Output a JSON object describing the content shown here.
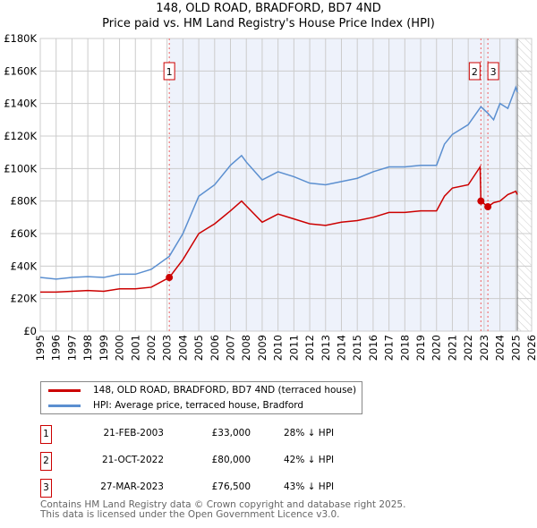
{
  "chart_data": {
    "type": "line",
    "title": "148, OLD ROAD, BRADFORD, BD7 4ND",
    "subtitle": "Price paid vs. HM Land Registry's House Price Index (HPI)",
    "xlim": [
      1995,
      2026
    ],
    "ylim": [
      0,
      180000
    ],
    "x_ticks": [
      "1995",
      "1996",
      "1997",
      "1998",
      "1999",
      "2000",
      "2001",
      "2002",
      "2003",
      "2004",
      "2005",
      "2006",
      "2007",
      "2008",
      "2009",
      "2010",
      "2011",
      "2012",
      "2013",
      "2014",
      "2015",
      "2016",
      "2017",
      "2018",
      "2019",
      "2020",
      "2021",
      "2022",
      "2023",
      "2024",
      "2025",
      "2026"
    ],
    "y_ticks": [
      {
        "v": 0,
        "l": "£0"
      },
      {
        "v": 20000,
        "l": "£20K"
      },
      {
        "v": 40000,
        "l": "£40K"
      },
      {
        "v": 60000,
        "l": "£60K"
      },
      {
        "v": 80000,
        "l": "£80K"
      },
      {
        "v": 100000,
        "l": "£100K"
      },
      {
        "v": 120000,
        "l": "£120K"
      },
      {
        "v": 140000,
        "l": "£140K"
      },
      {
        "v": 160000,
        "l": "£160K"
      },
      {
        "v": 180000,
        "l": "£180K"
      }
    ],
    "grid": true,
    "series": [
      {
        "name": "148, OLD ROAD, BRADFORD, BD7 4ND (terraced house)",
        "color": "#cc0000",
        "x": [
          1995,
          1996,
          1997,
          1998,
          1999,
          2000,
          2001,
          2002,
          2003.14,
          2004,
          2005,
          2006,
          2007,
          2007.7,
          2008,
          2009,
          2010,
          2011,
          2012,
          2013,
          2014,
          2015,
          2016,
          2017,
          2018,
          2019,
          2020,
          2020.5,
          2021,
          2022,
          2022.75,
          2022.8,
          2023.24,
          2023.6,
          2024,
          2024.5,
          2025,
          2025.1
        ],
        "values": [
          24000,
          24000,
          24500,
          25000,
          24500,
          26000,
          26000,
          27000,
          33000,
          44000,
          60000,
          66000,
          74000,
          80000,
          77000,
          67000,
          72000,
          69000,
          66000,
          65000,
          67000,
          68000,
          70000,
          73000,
          73000,
          74000,
          74000,
          83000,
          88000,
          90000,
          101000,
          80000,
          76500,
          79000,
          80000,
          84000,
          86000,
          84000
        ]
      },
      {
        "name": "HPI: Average price, terraced house, Bradford",
        "color": "#5b8fd0",
        "x": [
          1995,
          1996,
          1997,
          1998,
          1999,
          2000,
          2001,
          2002,
          2003.14,
          2004,
          2005,
          2006,
          2007,
          2007.7,
          2008,
          2009,
          2010,
          2011,
          2012,
          2013,
          2014,
          2015,
          2016,
          2017,
          2018,
          2019,
          2020,
          2020.5,
          2021,
          2022,
          2022.8,
          2023.24,
          2023.6,
          2024,
          2024.5,
          2025,
          2025.1
        ],
        "values": [
          33000,
          32000,
          33000,
          33500,
          33000,
          35000,
          35000,
          38000,
          46000,
          60000,
          83000,
          90000,
          102000,
          108000,
          104000,
          93000,
          98000,
          95000,
          91000,
          90000,
          92000,
          94000,
          98000,
          101000,
          101000,
          102000,
          102000,
          115000,
          121000,
          127000,
          138000,
          134000,
          130000,
          140000,
          137000,
          150000,
          147000
        ]
      }
    ],
    "sales": [
      {
        "label": "1",
        "date": "21-FEB-2003",
        "x": 2003.14,
        "price": "£33,000",
        "value": 33000,
        "hpi": "28% ↓ HPI"
      },
      {
        "label": "2",
        "date": "21-OCT-2022",
        "x": 2022.8,
        "price": "£80,000",
        "value": 80000,
        "hpi": "42% ↓ HPI"
      },
      {
        "label": "3",
        "date": "27-MAR-2023",
        "x": 2023.24,
        "price": "£76,500",
        "value": 76500,
        "hpi": "43% ↓ HPI"
      }
    ],
    "forecast_start": 2025.1
  },
  "footer": [
    "Contains HM Land Registry data © Crown copyright and database right 2025.",
    "This data is licensed under the Open Government Licence v3.0."
  ]
}
